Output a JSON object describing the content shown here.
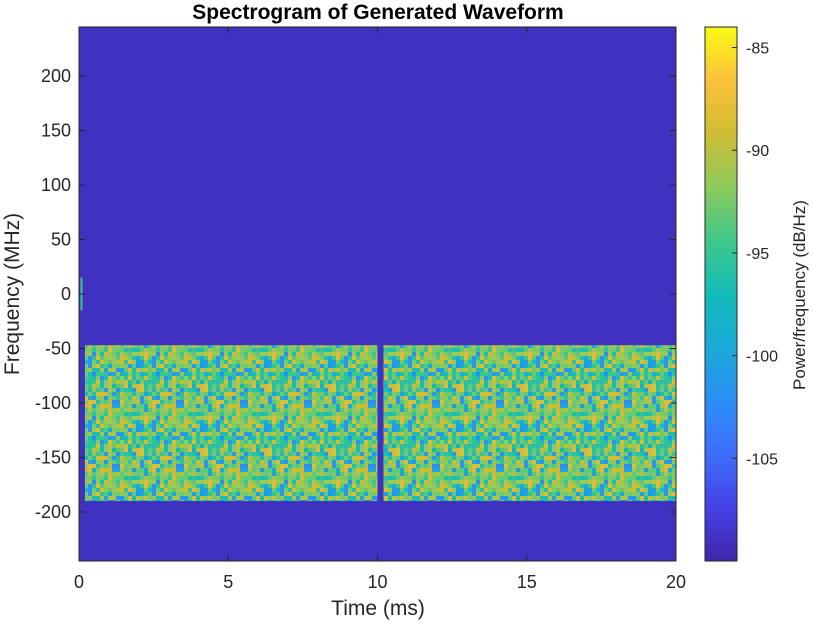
{
  "chart_data": {
    "type": "heatmap",
    "title": "Spectrogram of Generated Waveform",
    "xlabel": "Time (ms)",
    "ylabel": "Frequency (MHz)",
    "xlim": [
      0,
      20
    ],
    "ylim": [
      -245,
      245
    ],
    "xticks": [
      "0",
      "5",
      "10",
      "15",
      "20"
    ],
    "yticks": [
      "-200",
      "-150",
      "-100",
      "-50",
      "0",
      "50",
      "100",
      "150",
      "200"
    ],
    "colorbar": {
      "label": "Power/frequency (dB/Hz)",
      "limits": [
        -110,
        -84
      ],
      "ticks": [
        "-85",
        "-90",
        "-95",
        "-100",
        "-105"
      ],
      "colormap": "parula"
    },
    "background_level_db": -109,
    "bursts": [
      {
        "t_start": 0.2,
        "t_end": 10.0,
        "f_low": -190,
        "f_high": -47,
        "level_db": -93
      },
      {
        "t_start": 10.2,
        "t_end": 20.0,
        "f_low": -190,
        "f_high": -47,
        "level_db": -93
      }
    ],
    "dc_feature": {
      "t": 0.05,
      "f_low": -15,
      "f_high": 15
    }
  }
}
